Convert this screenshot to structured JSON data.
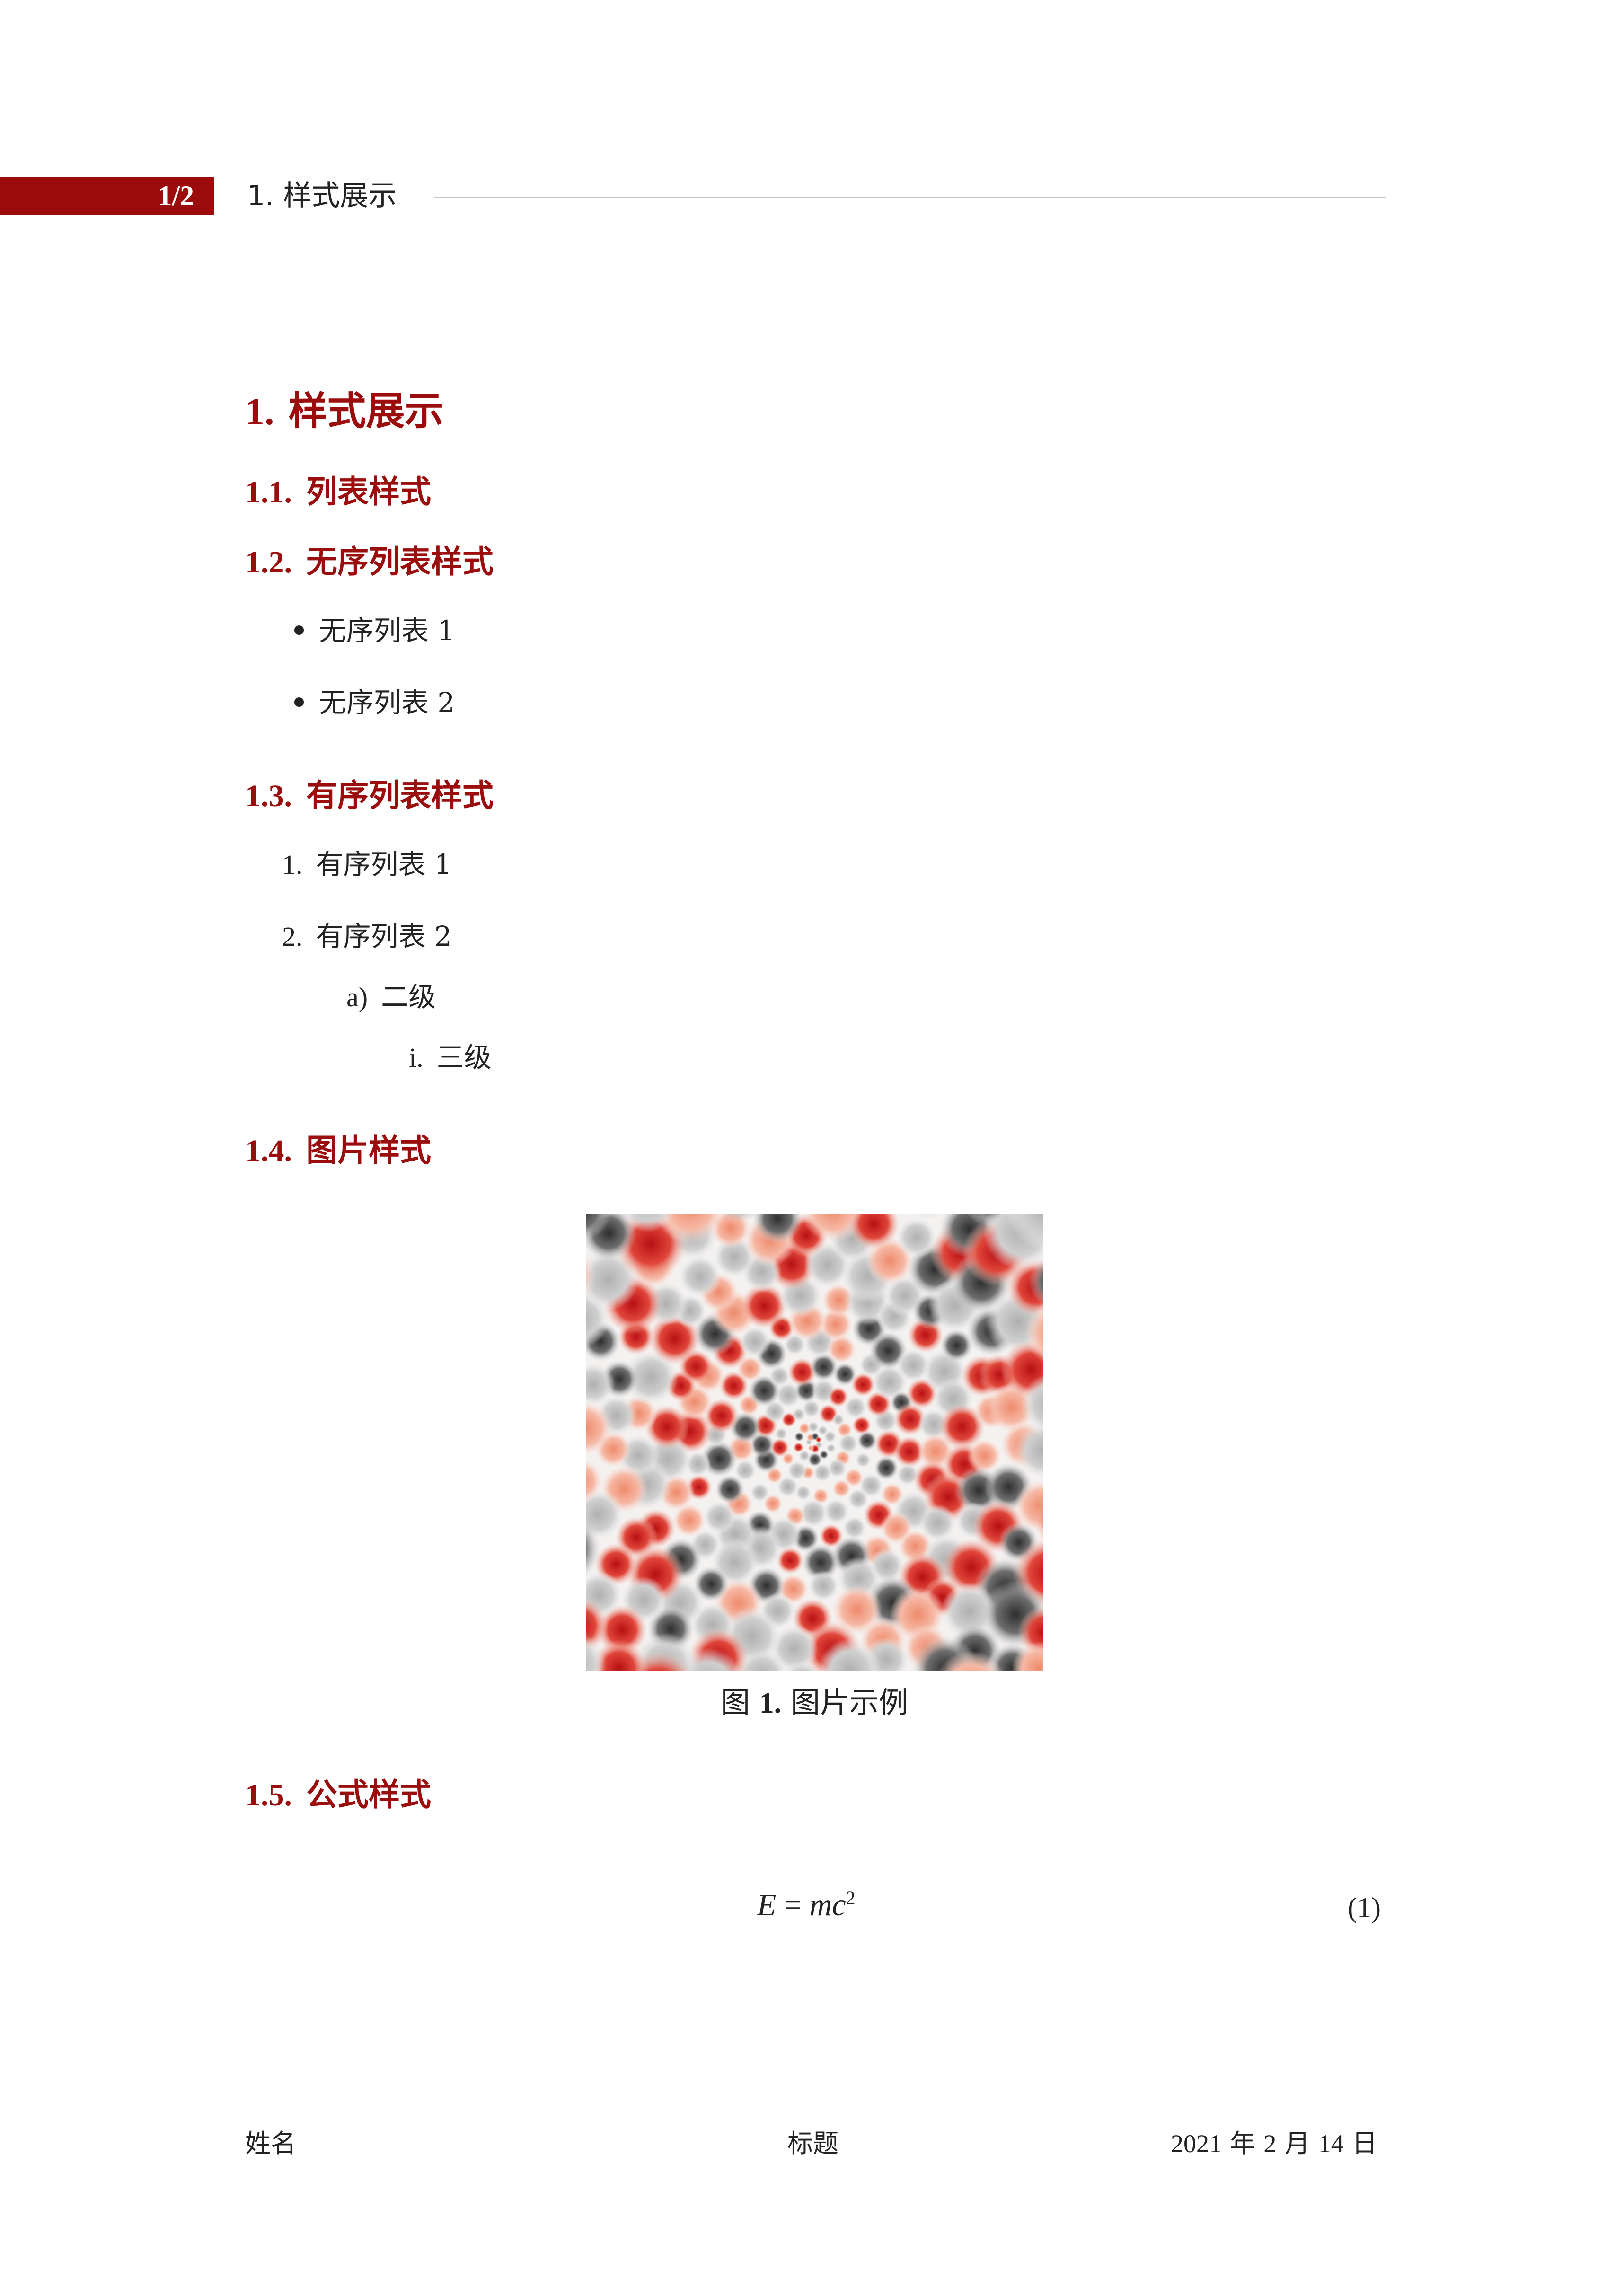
{
  "header": {
    "page_indicator": "1/2",
    "section_title": "1. 样式展示"
  },
  "sections": {
    "main": {
      "number": "1.",
      "title": "样式展示"
    },
    "list_style": {
      "number": "1.1.",
      "title": "列表样式"
    },
    "unordered": {
      "number": "1.2.",
      "title": "无序列表样式",
      "items": [
        "无序列表 1",
        "无序列表 2"
      ]
    },
    "ordered": {
      "number": "1.3.",
      "title": "有序列表样式",
      "items": [
        {
          "marker": "1.",
          "text": "有序列表 1"
        },
        {
          "marker": "2.",
          "text": "有序列表 2"
        }
      ],
      "level2": {
        "marker": "a)",
        "text": "二级"
      },
      "level3": {
        "marker": "i.",
        "text": "三级"
      }
    },
    "image": {
      "number": "1.4.",
      "title": "图片样式",
      "caption_prefix": "图",
      "caption_number": "1.",
      "caption_text": "图片示例"
    },
    "formula": {
      "number": "1.5.",
      "title": "公式样式",
      "lhs": "E",
      "equals": "=",
      "rhs": "mc",
      "exponent": "2",
      "equation_number": "(1)"
    }
  },
  "footer": {
    "author": "姓名",
    "title": "标题",
    "date_year": "2021",
    "date_year_unit": "年",
    "date_month": "2",
    "date_month_unit": "月",
    "date_day": "14",
    "date_day_unit": "日"
  },
  "colors": {
    "accent": "#9b0d0d",
    "text": "#222222",
    "rule": "#c4c4c4",
    "pattern_red": "#b80f14",
    "pattern_orange": "#ee8a6c",
    "pattern_dark": "#2e2e2e",
    "pattern_gray": "#b0b0b0"
  }
}
